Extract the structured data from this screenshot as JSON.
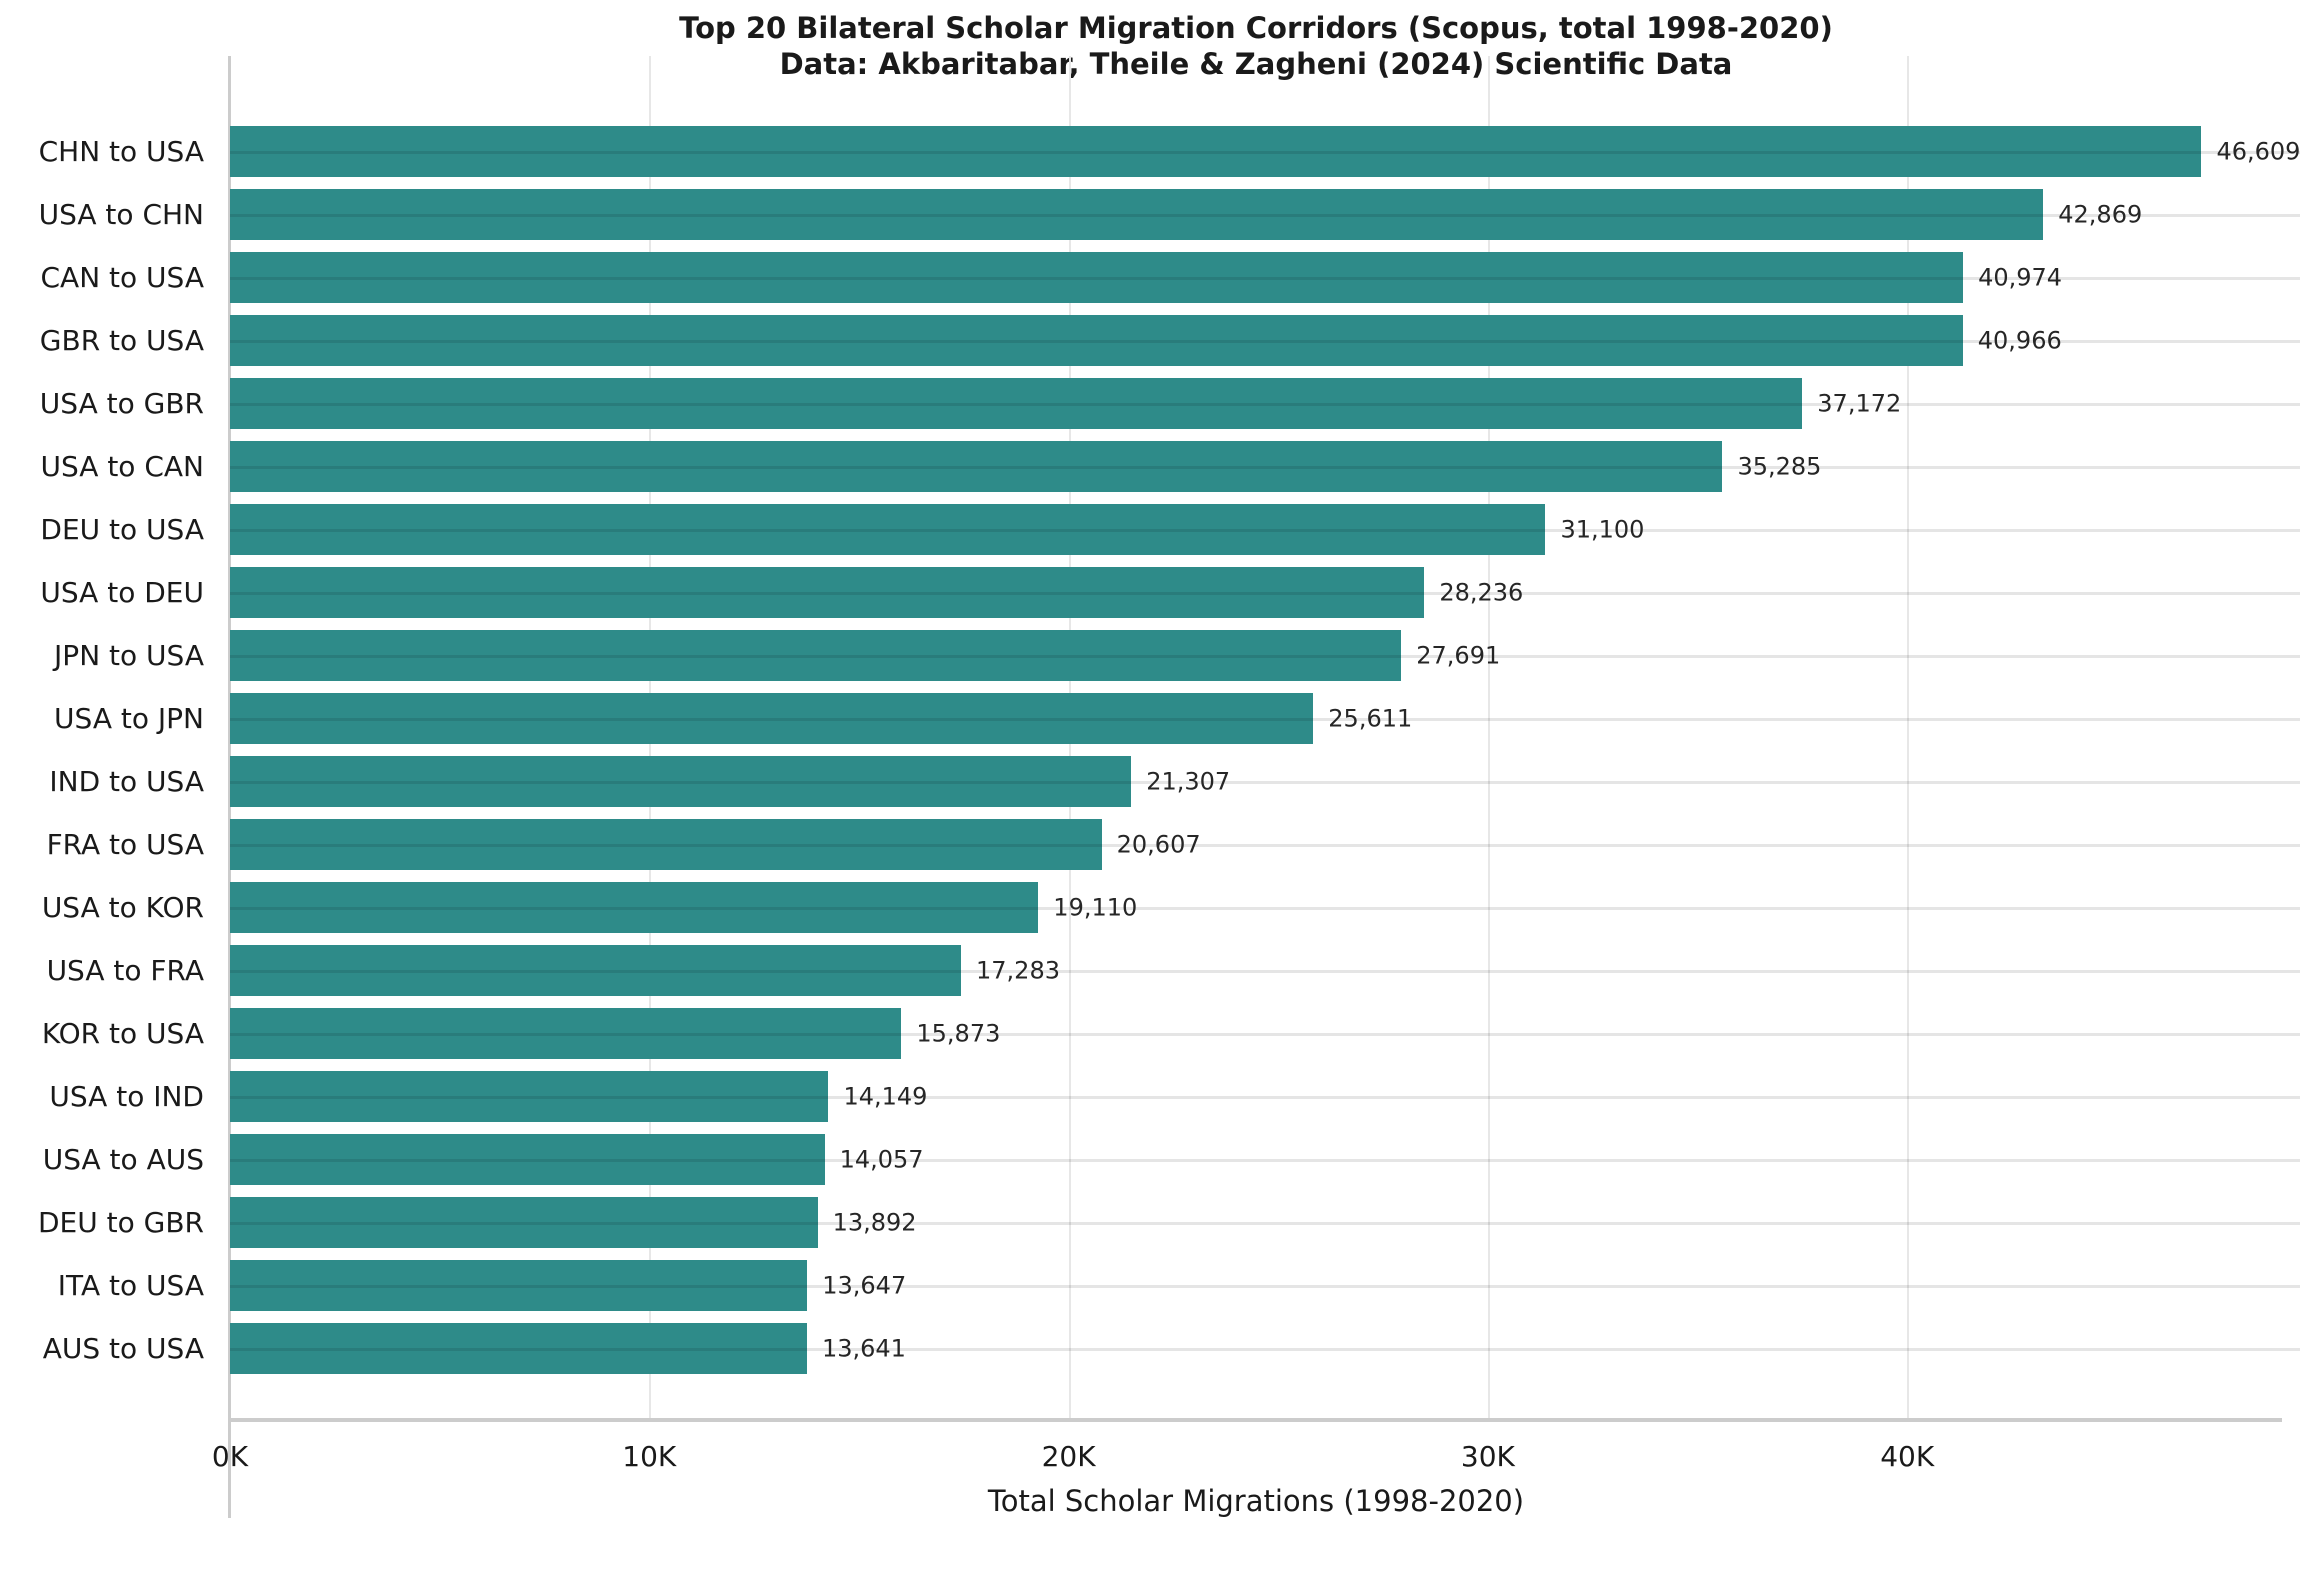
{
  "chart_data": {
    "type": "bar",
    "orientation": "horizontal",
    "title": "Top 20 Bilateral Scholar Migration Corridors (Scopus, total 1998-2020)",
    "subtitle": "Data: Akbaritabar, Theile & Zagheni (2024) Scientific Data",
    "xlabel": "Total Scholar Migrations (1998-2020)",
    "categories": [
      "CHN to USA",
      "USA to CHN",
      "CAN to USA",
      "GBR to USA",
      "USA to GBR",
      "USA to CAN",
      "DEU to USA",
      "USA to DEU",
      "JPN to USA",
      "USA to JPN",
      "IND to USA",
      "FRA to USA",
      "USA to KOR",
      "USA to FRA",
      "KOR to USA",
      "USA to IND",
      "USA to AUS",
      "DEU to GBR",
      "ITA to USA",
      "AUS to USA"
    ],
    "values": [
      46609,
      42869,
      40974,
      40966,
      37172,
      35285,
      31100,
      28236,
      27691,
      25611,
      21307,
      20607,
      19110,
      17283,
      15873,
      14149,
      14057,
      13892,
      13647,
      13641
    ],
    "value_labels": [
      "46,609",
      "42,869",
      "40,974",
      "40,966",
      "37,172",
      "35,285",
      "31,100",
      "28,236",
      "27,691",
      "25,611",
      "21,307",
      "20,607",
      "19,110",
      "17,283",
      "15,873",
      "14,149",
      "14,057",
      "13,892",
      "13,647",
      "13,641"
    ],
    "xticks": [
      0,
      10000,
      20000,
      30000,
      40000
    ],
    "xtick_labels": [
      "0K",
      "10K",
      "20K",
      "30K",
      "40K"
    ],
    "xlim": [
      0,
      48939
    ],
    "grid": true,
    "legend": "none",
    "bar_color": "#2e8b89",
    "grid_color": "#e7e7e7",
    "spine_color": "#cccccc",
    "text_color": "#1a1a1a"
  }
}
